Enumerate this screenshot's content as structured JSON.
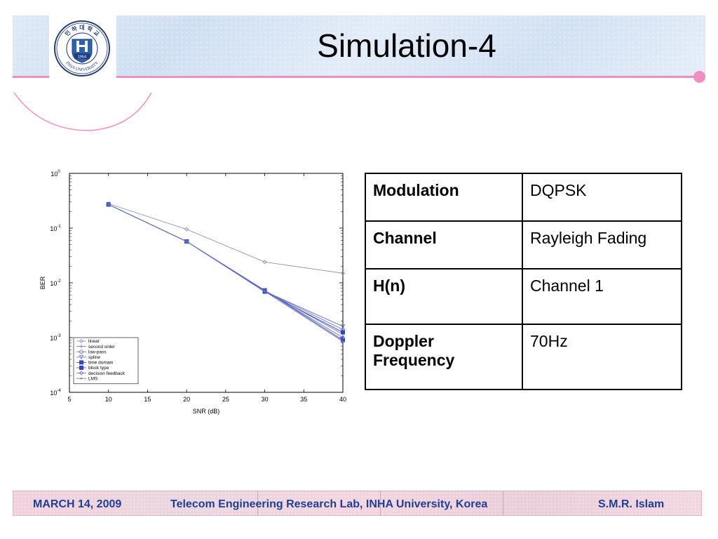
{
  "slide": {
    "title": "Simulation-4",
    "logo": {
      "text_top": "인 하 대 학 교",
      "text_bottom": "INHA UNIVERSITY",
      "year": "1954"
    }
  },
  "table": {
    "rows": [
      {
        "key": "Modulation",
        "value": "DQPSK"
      },
      {
        "key": "Channel",
        "value": "Rayleigh Fading"
      },
      {
        "key": "H(n)",
        "value": "Channel 1"
      },
      {
        "key": "Doppler Frequency",
        "value": "70Hz"
      }
    ]
  },
  "footer": {
    "date": "MARCH 14, 2009",
    "lab": "Telecom Engineering Research Lab, INHA University, Korea",
    "author": "S.M.R. Islam"
  },
  "colors": {
    "accent_pink": "#f08fbf",
    "footer_text": "#1f3f93",
    "series_blue": "#3344cc",
    "series_light": "#8890c0"
  },
  "chart_data": {
    "type": "line",
    "xlabel": "SNR (dB)",
    "ylabel": "BER",
    "xlim": [
      5,
      40
    ],
    "ylim": [
      0.0001,
      1
    ],
    "yscale": "log",
    "x_ticks": [
      "5",
      "10",
      "15",
      "20",
      "25",
      "30",
      "35",
      "40"
    ],
    "y_ticks": [
      {
        "base": "10",
        "exp": "0"
      },
      {
        "base": "10",
        "exp": "-1"
      },
      {
        "base": "10",
        "exp": "-2"
      },
      {
        "base": "10",
        "exp": "-3"
      },
      {
        "base": "10",
        "exp": "-4"
      }
    ],
    "legend_position": "bottom-left",
    "x": [
      10,
      20,
      30,
      40
    ],
    "series": [
      {
        "name": "linear",
        "values": [
          0.28,
          0.095,
          0.024,
          0.015
        ],
        "marker": "diamond"
      },
      {
        "name": "second order",
        "values": [
          0.27,
          0.057,
          0.0072,
          0.00115
        ],
        "marker": "plus"
      },
      {
        "name": "low-pass",
        "values": [
          0.27,
          0.057,
          0.0071,
          0.0014
        ],
        "marker": "circle"
      },
      {
        "name": "spline",
        "values": [
          0.27,
          0.057,
          0.007,
          0.0016
        ],
        "marker": "triangle"
      },
      {
        "name": "time domain",
        "values": [
          0.27,
          0.057,
          0.0073,
          0.0009
        ],
        "marker": "square"
      },
      {
        "name": "block type",
        "values": [
          0.27,
          0.057,
          0.0069,
          0.00125
        ],
        "marker": "square"
      },
      {
        "name": "decision feedback",
        "values": [
          0.27,
          0.057,
          0.0072,
          0.001
        ],
        "marker": "diamond"
      },
      {
        "name": "LMS",
        "values": [
          0.27,
          0.057,
          0.007,
          0.00085
        ],
        "marker": "dot"
      }
    ]
  }
}
